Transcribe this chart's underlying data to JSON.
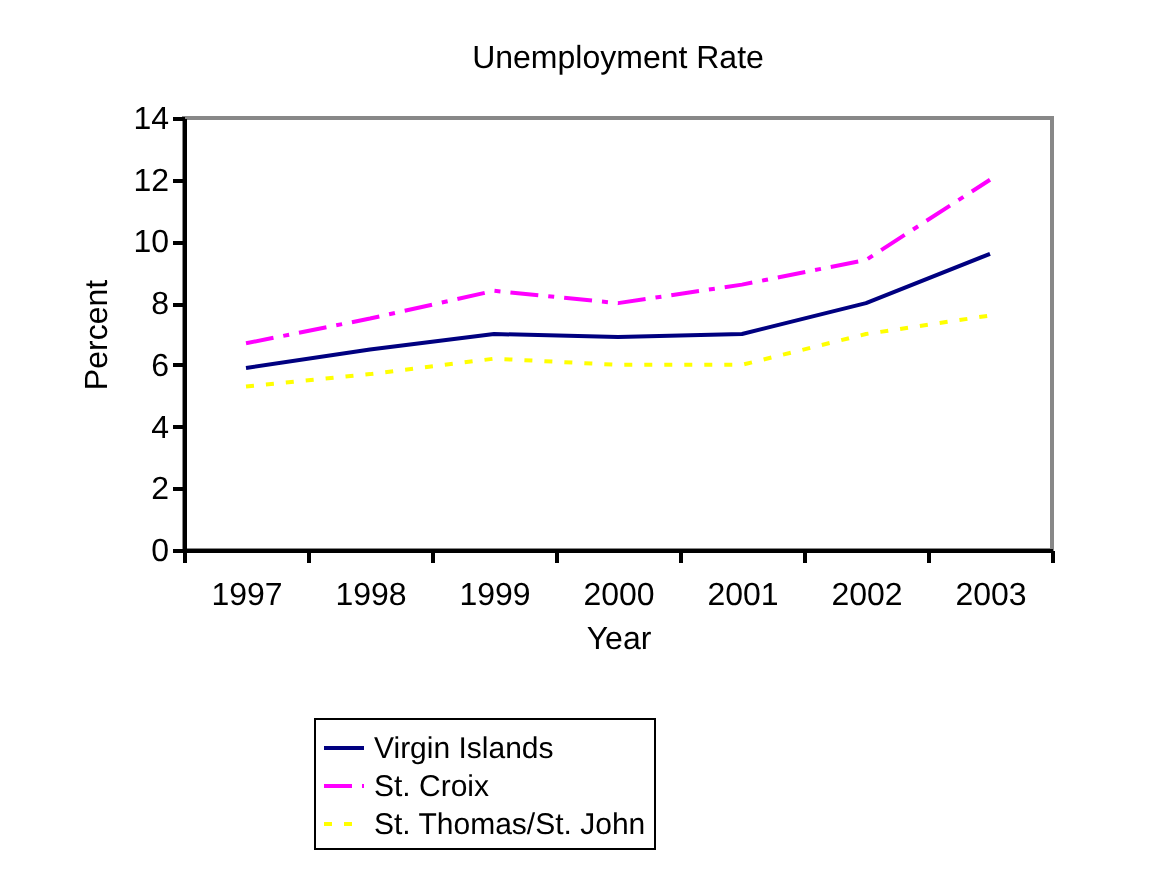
{
  "chart_data": {
    "type": "line",
    "title": "Unemployment Rate",
    "xlabel": "Year",
    "ylabel": "Percent",
    "categories": [
      "1997",
      "1998",
      "1999",
      "2000",
      "2001",
      "2002",
      "2003"
    ],
    "series": [
      {
        "name": "Virgin Islands",
        "color": "#000080",
        "line_style": "solid",
        "values": [
          5.9,
          6.5,
          7.0,
          6.9,
          7.0,
          8.0,
          9.6
        ]
      },
      {
        "name": "St. Croix",
        "color": "#ff00ff",
        "line_style": "dashed",
        "values": [
          6.7,
          7.5,
          8.4,
          8.0,
          8.6,
          9.4,
          12.0
        ]
      },
      {
        "name": "St. Thomas/St. John",
        "color": "#ffff00",
        "line_style": "dotted",
        "values": [
          5.3,
          5.7,
          6.2,
          6.0,
          6.0,
          7.0,
          7.6
        ]
      }
    ],
    "ylim": [
      0,
      14
    ],
    "yticks": [
      0,
      2,
      4,
      6,
      8,
      10,
      12,
      14
    ],
    "grid": false,
    "legend": "bottom",
    "marker": "none"
  }
}
